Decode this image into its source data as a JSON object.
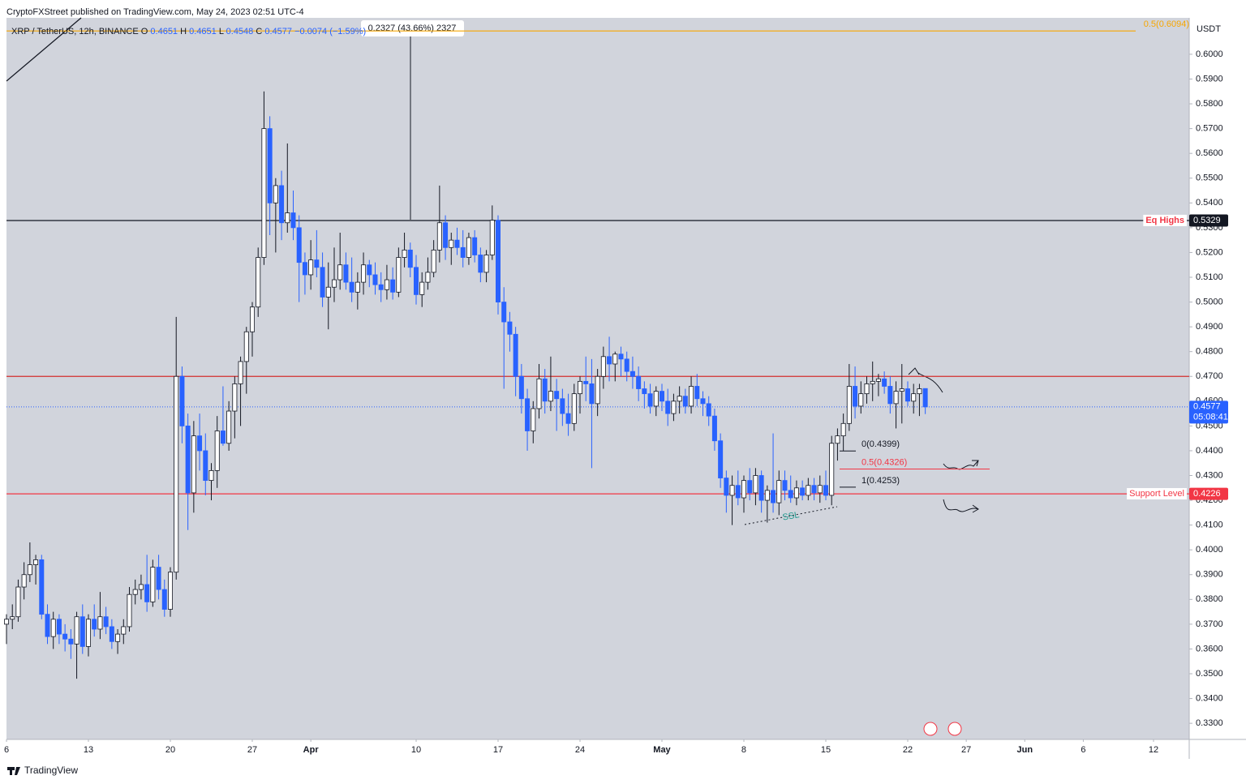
{
  "chart_data": {
    "type": "candlestick",
    "publisher": "CryptoFXStreet published on TradingView.com, May 24, 2023 02:51 UTC-4",
    "symbol": "XRP / TetherUS, 12h, BINANCE",
    "ohlc_letters": [
      "O",
      "H",
      "L",
      "C"
    ],
    "change_label": "−0.0074 (−1.59%)",
    "currency": "USDT",
    "countdown": "05:08:41",
    "measure_label": "0.2327 (43.66%) 2327",
    "ssl_label": "SSL",
    "brand": "TradingView",
    "up_color": "#ffffff",
    "down_color": "#2962ff",
    "ylim": [
      0.3235,
      0.6147
    ],
    "yticks": [
      {
        "value": 0.33,
        "label": "0.3300"
      },
      {
        "value": 0.34,
        "label": "0.3400"
      },
      {
        "value": 0.35,
        "label": "0.3500"
      },
      {
        "value": 0.36,
        "label": "0.3600"
      },
      {
        "value": 0.37,
        "label": "0.3700"
      },
      {
        "value": 0.38,
        "label": "0.3800"
      },
      {
        "value": 0.39,
        "label": "0.3900"
      },
      {
        "value": 0.4,
        "label": "0.4000"
      },
      {
        "value": 0.41,
        "label": "0.4100"
      },
      {
        "value": 0.42,
        "label": "0.4200"
      },
      {
        "value": 0.43,
        "label": "0.4300"
      },
      {
        "value": 0.44,
        "label": "0.4400"
      },
      {
        "value": 0.45,
        "label": "0.4500"
      },
      {
        "value": 0.46,
        "label": "0.4600"
      },
      {
        "value": 0.47,
        "label": "0.4700"
      },
      {
        "value": 0.48,
        "label": "0.4800"
      },
      {
        "value": 0.49,
        "label": "0.4900"
      },
      {
        "value": 0.5,
        "label": "0.5000"
      },
      {
        "value": 0.51,
        "label": "0.5100"
      },
      {
        "value": 0.52,
        "label": "0.5200"
      },
      {
        "value": 0.53,
        "label": "0.5300"
      },
      {
        "value": 0.54,
        "label": "0.5400"
      },
      {
        "value": 0.55,
        "label": "0.5500"
      },
      {
        "value": 0.56,
        "label": "0.5600"
      },
      {
        "value": 0.57,
        "label": "0.5700"
      },
      {
        "value": 0.58,
        "label": "0.5800"
      },
      {
        "value": 0.59,
        "label": "0.5900"
      },
      {
        "value": 0.6,
        "label": "0.6000"
      }
    ],
    "xlim": [
      0,
      202.1
    ],
    "xticks": [
      {
        "value": 0,
        "label": "6"
      },
      {
        "value": 14,
        "label": "13"
      },
      {
        "value": 28,
        "label": "20"
      },
      {
        "value": 42,
        "label": "27"
      },
      {
        "value": 52,
        "label": "Apr"
      },
      {
        "value": 70,
        "label": "10"
      },
      {
        "value": 84,
        "label": "17"
      },
      {
        "value": 98,
        "label": "24"
      },
      {
        "value": 112,
        "label": "May"
      },
      {
        "value": 126,
        "label": "8"
      },
      {
        "value": 140,
        "label": "15"
      },
      {
        "value": 154,
        "label": "22"
      },
      {
        "value": 164,
        "label": "27"
      },
      {
        "value": 174,
        "label": "Jun"
      },
      {
        "value": 184,
        "label": "6"
      },
      {
        "value": 196,
        "label": "12"
      }
    ],
    "levels": [
      {
        "value": 0.6094,
        "label": "0.5(0.6094)",
        "color": "#f7a600"
      },
      {
        "value": 0.5329,
        "label": "Eq Highs",
        "color": "#131722",
        "label_color": "#f23645",
        "tag": true
      },
      {
        "value": 0.47,
        "color": "#d32f2f"
      },
      {
        "value": 0.4226,
        "label": "Support Level",
        "color": "#f23645",
        "tag": true
      },
      {
        "value": 0.4577,
        "color": "#2962ff",
        "style": "dotted",
        "tag": true
      }
    ],
    "fib": [
      {
        "value": 0.4399,
        "label": "0(0.4399)",
        "color": "#131722"
      },
      {
        "value": 0.4326,
        "label": "0.5(0.4326)",
        "color": "#f23645"
      },
      {
        "value": 0.4253,
        "label": "1(0.4253)",
        "color": "#131722"
      }
    ],
    "ohlc": [
      [
        0.37,
        0.374,
        0.362,
        0.372
      ],
      [
        0.372,
        0.378,
        0.368,
        0.373
      ],
      [
        0.373,
        0.388,
        0.371,
        0.385
      ],
      [
        0.385,
        0.395,
        0.38,
        0.39
      ],
      [
        0.39,
        0.403,
        0.387,
        0.394
      ],
      [
        0.394,
        0.398,
        0.386,
        0.396
      ],
      [
        0.396,
        0.398,
        0.372,
        0.374
      ],
      [
        0.374,
        0.378,
        0.362,
        0.365
      ],
      [
        0.365,
        0.375,
        0.36,
        0.372
      ],
      [
        0.372,
        0.374,
        0.362,
        0.366
      ],
      [
        0.366,
        0.37,
        0.359,
        0.364
      ],
      [
        0.364,
        0.368,
        0.356,
        0.362
      ],
      [
        0.362,
        0.375,
        0.348,
        0.373
      ],
      [
        0.373,
        0.378,
        0.358,
        0.361
      ],
      [
        0.361,
        0.374,
        0.357,
        0.372
      ],
      [
        0.372,
        0.378,
        0.365,
        0.368
      ],
      [
        0.368,
        0.383,
        0.364,
        0.373
      ],
      [
        0.373,
        0.377,
        0.366,
        0.369
      ],
      [
        0.369,
        0.372,
        0.36,
        0.363
      ],
      [
        0.363,
        0.368,
        0.358,
        0.366
      ],
      [
        0.366,
        0.372,
        0.362,
        0.369
      ],
      [
        0.369,
        0.385,
        0.367,
        0.382
      ],
      [
        0.382,
        0.388,
        0.378,
        0.384
      ],
      [
        0.384,
        0.39,
        0.38,
        0.386
      ],
      [
        0.386,
        0.398,
        0.375,
        0.379
      ],
      [
        0.379,
        0.396,
        0.377,
        0.393
      ],
      [
        0.393,
        0.398,
        0.38,
        0.384
      ],
      [
        0.384,
        0.388,
        0.373,
        0.376
      ],
      [
        0.376,
        0.393,
        0.373,
        0.391
      ],
      [
        0.391,
        0.494,
        0.388,
        0.47
      ],
      [
        0.47,
        0.474,
        0.443,
        0.45
      ],
      [
        0.45,
        0.455,
        0.408,
        0.423
      ],
      [
        0.423,
        0.452,
        0.415,
        0.446
      ],
      [
        0.446,
        0.455,
        0.432,
        0.44
      ],
      [
        0.44,
        0.447,
        0.422,
        0.428
      ],
      [
        0.428,
        0.435,
        0.42,
        0.432
      ],
      [
        0.432,
        0.454,
        0.425,
        0.448
      ],
      [
        0.448,
        0.466,
        0.442,
        0.443
      ],
      [
        0.443,
        0.46,
        0.44,
        0.456
      ],
      [
        0.456,
        0.47,
        0.445,
        0.467
      ],
      [
        0.467,
        0.478,
        0.45,
        0.476
      ],
      [
        0.476,
        0.49,
        0.463,
        0.488
      ],
      [
        0.488,
        0.5,
        0.478,
        0.498
      ],
      [
        0.498,
        0.522,
        0.494,
        0.518
      ],
      [
        0.518,
        0.585,
        0.515,
        0.57
      ],
      [
        0.57,
        0.575,
        0.527,
        0.54
      ],
      [
        0.54,
        0.55,
        0.52,
        0.547
      ],
      [
        0.547,
        0.553,
        0.525,
        0.532
      ],
      [
        0.532,
        0.564,
        0.528,
        0.536
      ],
      [
        0.536,
        0.545,
        0.525,
        0.53
      ],
      [
        0.53,
        0.535,
        0.5,
        0.516
      ],
      [
        0.516,
        0.52,
        0.503,
        0.511
      ],
      [
        0.511,
        0.525,
        0.505,
        0.517
      ],
      [
        0.517,
        0.529,
        0.51,
        0.514
      ],
      [
        0.514,
        0.52,
        0.498,
        0.502
      ],
      [
        0.502,
        0.516,
        0.489,
        0.506
      ],
      [
        0.506,
        0.522,
        0.5,
        0.509
      ],
      [
        0.509,
        0.528,
        0.505,
        0.515
      ],
      [
        0.515,
        0.52,
        0.505,
        0.508
      ],
      [
        0.508,
        0.518,
        0.5,
        0.504
      ],
      [
        0.504,
        0.512,
        0.497,
        0.508
      ],
      [
        0.508,
        0.52,
        0.503,
        0.515
      ],
      [
        0.515,
        0.517,
        0.506,
        0.511
      ],
      [
        0.511,
        0.516,
        0.503,
        0.507
      ],
      [
        0.507,
        0.512,
        0.5,
        0.505
      ],
      [
        0.505,
        0.515,
        0.501,
        0.509
      ],
      [
        0.509,
        0.514,
        0.501,
        0.504
      ],
      [
        0.504,
        0.522,
        0.502,
        0.518
      ],
      [
        0.518,
        0.528,
        0.514,
        0.521
      ],
      [
        0.521,
        0.524,
        0.51,
        0.514
      ],
      [
        0.514,
        0.519,
        0.499,
        0.503
      ],
      [
        0.503,
        0.512,
        0.498,
        0.508
      ],
      [
        0.508,
        0.518,
        0.505,
        0.512
      ],
      [
        0.512,
        0.525,
        0.51,
        0.521
      ],
      [
        0.521,
        0.547,
        0.516,
        0.532
      ],
      [
        0.532,
        0.535,
        0.517,
        0.522
      ],
      [
        0.522,
        0.528,
        0.515,
        0.525
      ],
      [
        0.525,
        0.53,
        0.519,
        0.522
      ],
      [
        0.522,
        0.529,
        0.514,
        0.518
      ],
      [
        0.518,
        0.528,
        0.515,
        0.526
      ],
      [
        0.526,
        0.529,
        0.516,
        0.519
      ],
      [
        0.519,
        0.522,
        0.508,
        0.512
      ],
      [
        0.512,
        0.521,
        0.508,
        0.519
      ],
      [
        0.519,
        0.539,
        0.517,
        0.533
      ],
      [
        0.533,
        0.535,
        0.495,
        0.5
      ],
      [
        0.5,
        0.506,
        0.465,
        0.492
      ],
      [
        0.492,
        0.496,
        0.48,
        0.487
      ],
      [
        0.487,
        0.49,
        0.462,
        0.47
      ],
      [
        0.47,
        0.475,
        0.455,
        0.461
      ],
      [
        0.461,
        0.465,
        0.44,
        0.448
      ],
      [
        0.448,
        0.46,
        0.443,
        0.457
      ],
      [
        0.457,
        0.475,
        0.453,
        0.469
      ],
      [
        0.469,
        0.473,
        0.455,
        0.46
      ],
      [
        0.46,
        0.478,
        0.456,
        0.464
      ],
      [
        0.464,
        0.469,
        0.448,
        0.461
      ],
      [
        0.461,
        0.465,
        0.45,
        0.455
      ],
      [
        0.455,
        0.463,
        0.446,
        0.451
      ],
      [
        0.451,
        0.467,
        0.448,
        0.463
      ],
      [
        0.463,
        0.47,
        0.455,
        0.468
      ],
      [
        0.468,
        0.478,
        0.46,
        0.467
      ],
      [
        0.467,
        0.477,
        0.433,
        0.459
      ],
      [
        0.459,
        0.473,
        0.454,
        0.47
      ],
      [
        0.47,
        0.482,
        0.465,
        0.478
      ],
      [
        0.478,
        0.486,
        0.468,
        0.475
      ],
      [
        0.475,
        0.48,
        0.468,
        0.479
      ],
      [
        0.479,
        0.482,
        0.47,
        0.477
      ],
      [
        0.477,
        0.48,
        0.468,
        0.472
      ],
      [
        0.472,
        0.478,
        0.465,
        0.47
      ],
      [
        0.47,
        0.474,
        0.46,
        0.465
      ],
      [
        0.465,
        0.468,
        0.457,
        0.463
      ],
      [
        0.463,
        0.467,
        0.455,
        0.458
      ],
      [
        0.458,
        0.466,
        0.454,
        0.464
      ],
      [
        0.464,
        0.467,
        0.456,
        0.46
      ],
      [
        0.46,
        0.465,
        0.45,
        0.455
      ],
      [
        0.455,
        0.463,
        0.452,
        0.46
      ],
      [
        0.46,
        0.466,
        0.455,
        0.462
      ],
      [
        0.462,
        0.465,
        0.455,
        0.458
      ],
      [
        0.458,
        0.47,
        0.455,
        0.466
      ],
      [
        0.466,
        0.471,
        0.458,
        0.461
      ],
      [
        0.461,
        0.464,
        0.454,
        0.459
      ],
      [
        0.459,
        0.462,
        0.45,
        0.454
      ],
      [
        0.454,
        0.457,
        0.44,
        0.444
      ],
      [
        0.444,
        0.447,
        0.425,
        0.429
      ],
      [
        0.429,
        0.432,
        0.415,
        0.422
      ],
      [
        0.422,
        0.43,
        0.41,
        0.426
      ],
      [
        0.426,
        0.432,
        0.418,
        0.421
      ],
      [
        0.421,
        0.43,
        0.415,
        0.428
      ],
      [
        0.428,
        0.433,
        0.42,
        0.423
      ],
      [
        0.423,
        0.433,
        0.418,
        0.43
      ],
      [
        0.43,
        0.432,
        0.415,
        0.42
      ],
      [
        0.42,
        0.426,
        0.411,
        0.424
      ],
      [
        0.424,
        0.447,
        0.415,
        0.419
      ],
      [
        0.419,
        0.432,
        0.414,
        0.428
      ],
      [
        0.428,
        0.432,
        0.42,
        0.424
      ],
      [
        0.424,
        0.43,
        0.419,
        0.421
      ],
      [
        0.421,
        0.428,
        0.418,
        0.425
      ],
      [
        0.425,
        0.428,
        0.42,
        0.422
      ],
      [
        0.422,
        0.429,
        0.42,
        0.426
      ],
      [
        0.426,
        0.429,
        0.42,
        0.423
      ],
      [
        0.423,
        0.43,
        0.419,
        0.426
      ],
      [
        0.426,
        0.432,
        0.42,
        0.422
      ],
      [
        0.422,
        0.446,
        0.418,
        0.443
      ],
      [
        0.443,
        0.449,
        0.436,
        0.446
      ],
      [
        0.446,
        0.455,
        0.44,
        0.451
      ],
      [
        0.451,
        0.475,
        0.448,
        0.466
      ],
      [
        0.466,
        0.474,
        0.453,
        0.458
      ],
      [
        0.458,
        0.468,
        0.455,
        0.463
      ],
      [
        0.463,
        0.47,
        0.459,
        0.467
      ],
      [
        0.467,
        0.476,
        0.46,
        0.468
      ],
      [
        0.468,
        0.471,
        0.462,
        0.469
      ],
      [
        0.469,
        0.472,
        0.463,
        0.466
      ],
      [
        0.466,
        0.47,
        0.455,
        0.459
      ],
      [
        0.459,
        0.468,
        0.449,
        0.464
      ],
      [
        0.464,
        0.475,
        0.451,
        0.465
      ],
      [
        0.465,
        0.468,
        0.458,
        0.46
      ],
      [
        0.46,
        0.467,
        0.455,
        0.463
      ],
      [
        0.463,
        0.467,
        0.454,
        0.465
      ],
      [
        0.4651,
        0.4651,
        0.4548,
        0.4577
      ]
    ]
  }
}
